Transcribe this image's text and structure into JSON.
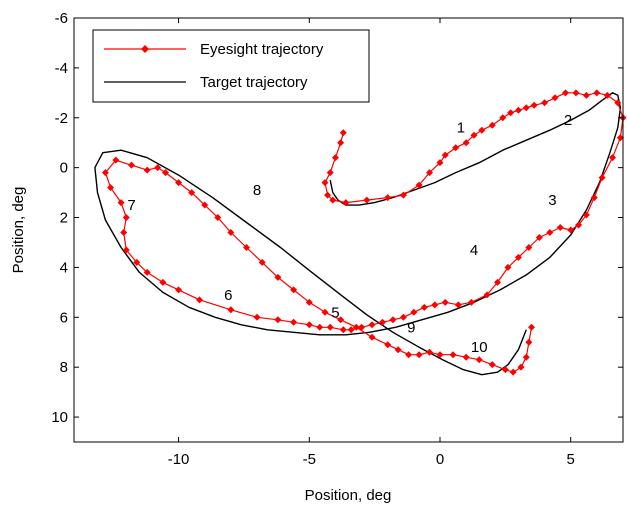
{
  "chart_data": {
    "type": "line",
    "title": "",
    "xlabel": "Position, deg",
    "ylabel": "Position, deg",
    "xlim": [
      -14,
      7
    ],
    "ylim": [
      -6,
      11
    ],
    "y_reversed": true,
    "xticks": [
      -10,
      -5,
      0,
      5
    ],
    "yticks": [
      -6,
      -4,
      -2,
      0,
      2,
      4,
      6,
      8,
      10
    ],
    "grid": false,
    "legend_position": "top-left",
    "colors": {
      "eyesight": "#ff0000",
      "target": "#000000"
    },
    "series": [
      {
        "name": "Eyesight trajectory",
        "style": "line-with-diamond-markers",
        "x": [
          -3.7,
          -3.8,
          -4.0,
          -4.2,
          -4.4,
          -4.3,
          -4.1,
          -3.6,
          -2.8,
          -2.0,
          -1.4,
          -0.8,
          -0.4,
          0.0,
          0.2,
          0.6,
          1.0,
          1.3,
          1.6,
          2.0,
          2.4,
          2.7,
          3.0,
          3.3,
          3.6,
          4.0,
          4.4,
          4.8,
          5.2,
          5.6,
          6.0,
          6.4,
          6.8,
          7.0,
          6.9,
          6.6,
          6.2,
          5.9,
          5.6,
          5.3,
          5.0,
          4.6,
          4.2,
          3.8,
          3.4,
          3.0,
          2.6,
          2.2,
          1.8,
          1.2,
          0.7,
          0.2,
          -0.2,
          -0.6,
          -1.0,
          -1.4,
          -1.8,
          -2.2,
          -2.6,
          -3.0,
          -3.4,
          -3.7,
          -4.2,
          -4.6,
          -5.0,
          -5.6,
          -6.2,
          -7.0,
          -8.0,
          -9.2,
          -10.0,
          -10.6,
          -11.2,
          -11.6,
          -12.0,
          -12.1,
          -12.0,
          -12.2,
          -12.6,
          -12.8,
          -12.4,
          -11.8,
          -11.2,
          -10.8,
          -10.5,
          -10.0,
          -9.5,
          -9.0,
          -8.5,
          -8.0,
          -7.4,
          -6.8,
          -6.2,
          -5.6,
          -5.0,
          -4.4,
          -3.8,
          -3.2,
          -2.6,
          -2.0,
          -1.6,
          -1.2,
          -0.8,
          -0.4,
          0.0,
          0.5,
          1.0,
          1.5,
          2.0,
          2.5,
          2.8,
          3.1,
          3.3,
          3.4,
          3.5
        ],
        "y": [
          -1.4,
          -1.0,
          -0.4,
          0.2,
          0.6,
          1.1,
          1.3,
          1.4,
          1.3,
          1.2,
          1.1,
          0.7,
          0.2,
          -0.2,
          -0.5,
          -0.8,
          -1.0,
          -1.3,
          -1.5,
          -1.7,
          -2.0,
          -2.2,
          -2.3,
          -2.4,
          -2.5,
          -2.6,
          -2.8,
          -3.0,
          -3.0,
          -2.9,
          -3.0,
          -2.9,
          -2.6,
          -2.0,
          -1.2,
          -0.4,
          0.4,
          1.2,
          1.9,
          2.3,
          2.5,
          2.4,
          2.6,
          2.8,
          3.2,
          3.6,
          4.0,
          4.6,
          5.1,
          5.4,
          5.5,
          5.4,
          5.5,
          5.6,
          5.8,
          6.0,
          6.1,
          6.2,
          6.3,
          6.4,
          6.5,
          6.5,
          6.4,
          6.4,
          6.3,
          6.2,
          6.1,
          6.0,
          5.7,
          5.3,
          4.9,
          4.6,
          4.2,
          3.8,
          3.3,
          2.6,
          2.0,
          1.4,
          0.8,
          0.2,
          -0.3,
          -0.1,
          0.1,
          0.0,
          0.2,
          0.6,
          1.0,
          1.5,
          2.0,
          2.6,
          3.2,
          3.8,
          4.4,
          4.9,
          5.4,
          5.8,
          6.1,
          6.4,
          6.8,
          7.1,
          7.3,
          7.5,
          7.5,
          7.4,
          7.5,
          7.5,
          7.6,
          7.7,
          7.9,
          8.1,
          8.2,
          8.0,
          7.6,
          7.0,
          6.4
        ]
      },
      {
        "name": "Target trajectory",
        "style": "line",
        "x": [
          -4.2,
          -4.1,
          -3.9,
          -3.6,
          -3.1,
          -2.5,
          -1.8,
          -1.0,
          -0.2,
          0.6,
          1.5,
          2.4,
          3.3,
          4.2,
          5.0,
          5.7,
          6.2,
          6.6,
          6.8,
          6.9,
          6.8,
          6.5,
          6.1,
          5.6,
          5.0,
          4.2,
          3.3,
          2.3,
          1.3,
          0.3,
          -0.7,
          -1.7,
          -2.7,
          -3.6,
          -4.6,
          -5.6,
          -6.6,
          -7.6,
          -8.6,
          -9.6,
          -10.6,
          -11.5,
          -12.2,
          -12.8,
          -13.1,
          -13.2,
          -12.9,
          -12.2,
          -11.2,
          -10.0,
          -8.7,
          -7.4,
          -6.1,
          -4.9,
          -3.8,
          -2.8,
          -1.8,
          -0.8,
          0.1,
          0.9,
          1.6,
          2.2,
          2.6,
          3.0,
          3.3
        ],
        "y": [
          0.5,
          1.0,
          1.3,
          1.5,
          1.5,
          1.4,
          1.2,
          0.9,
          0.6,
          0.2,
          -0.2,
          -0.7,
          -1.1,
          -1.5,
          -1.9,
          -2.3,
          -2.7,
          -3.0,
          -2.9,
          -2.4,
          -1.6,
          -0.6,
          0.6,
          1.7,
          2.7,
          3.6,
          4.3,
          4.9,
          5.4,
          5.8,
          6.1,
          6.4,
          6.6,
          6.7,
          6.7,
          6.6,
          6.5,
          6.3,
          6.0,
          5.6,
          5.0,
          4.2,
          3.2,
          2.1,
          1.0,
          0.0,
          -0.6,
          -0.7,
          -0.4,
          0.3,
          1.2,
          2.2,
          3.2,
          4.2,
          5.1,
          5.9,
          6.6,
          7.2,
          7.7,
          8.1,
          8.3,
          8.2,
          7.9,
          7.3,
          6.5
        ]
      }
    ],
    "annotations": [
      {
        "text": "1",
        "x": 0.8,
        "y": -1.4
      },
      {
        "text": "2",
        "x": 4.9,
        "y": -1.7
      },
      {
        "text": "3",
        "x": 4.3,
        "y": 1.5
      },
      {
        "text": "4",
        "x": 1.3,
        "y": 3.5
      },
      {
        "text": "5",
        "x": -4.0,
        "y": 6.0
      },
      {
        "text": "6",
        "x": -8.1,
        "y": 5.3
      },
      {
        "text": "7",
        "x": -11.8,
        "y": 1.7
      },
      {
        "text": "8",
        "x": -7.0,
        "y": 1.1
      },
      {
        "text": "9",
        "x": -1.1,
        "y": 6.6
      },
      {
        "text": "10",
        "x": 1.5,
        "y": 7.4
      }
    ]
  }
}
